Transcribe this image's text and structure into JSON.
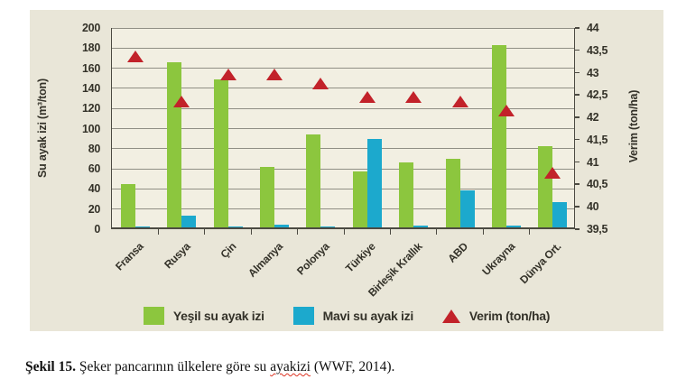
{
  "figure": {
    "caption": {
      "label": "Şekil 15.",
      "before": " Şeker pancarının ülkelere göre su ",
      "misspelled": "ayakizi",
      "after": " (WWF, 2014)."
    }
  },
  "colors": {
    "green_bar": "#8cc63e",
    "blue_bar": "#1ca9cd",
    "red_marker": "#c2222a",
    "panel_bg": "#e9e6d8",
    "plot_bg": "#f2efe2",
    "gridline": "#908f85",
    "axis": "#4c4a42"
  },
  "chart_data": {
    "type": "combo-bar-scatter",
    "title": "",
    "legend_position": "bottom",
    "grid": true,
    "categories": [
      "Fransa",
      "Rusya",
      "Çin",
      "Almanya",
      "Polonya",
      "Türkiye",
      "Birleşik Krallık",
      "ABD",
      "Ukrayna",
      "Dünya Ort."
    ],
    "series": [
      {
        "name": "Yeşil su ayak izi",
        "type": "bar",
        "axis": "left",
        "color": "#8cc63e",
        "values": [
          43,
          164,
          147,
          60,
          92,
          56,
          65,
          68,
          181,
          81
        ]
      },
      {
        "name": "Mavi su ayak izi",
        "type": "bar",
        "axis": "left",
        "color": "#1ca9cd",
        "values": [
          1,
          12,
          0.5,
          3,
          1,
          88,
          1.5,
          37,
          2,
          25
        ]
      },
      {
        "name": "Verim (ton/ha)",
        "type": "scatter",
        "marker": "triangle",
        "axis": "right",
        "color": "#c2222a",
        "values": [
          43.35,
          42.35,
          42.95,
          42.95,
          42.75,
          42.45,
          42.45,
          42.35,
          42.15,
          40.75
        ]
      }
    ],
    "left_axis": {
      "title": "Su ayak izi (m³/ton)",
      "min": 0,
      "max": 200,
      "step": 20,
      "tick_values": [
        0,
        20,
        40,
        60,
        80,
        100,
        120,
        140,
        160,
        180,
        200
      ],
      "tick_labels": [
        "0",
        "20",
        "40",
        "60",
        "80",
        "100",
        "120",
        "140",
        "160",
        "180",
        "200"
      ]
    },
    "right_axis": {
      "title": "Verim (ton/ha)",
      "min": 39.5,
      "max": 44,
      "step": 0.5,
      "tick_values": [
        39.5,
        40,
        40.5,
        41,
        41.5,
        42,
        42.5,
        43,
        43.5,
        44
      ],
      "tick_labels": [
        "39,5",
        "40",
        "40,5",
        "41",
        "41,5",
        "42",
        "42,5",
        "43",
        "43,5",
        "44"
      ]
    }
  }
}
